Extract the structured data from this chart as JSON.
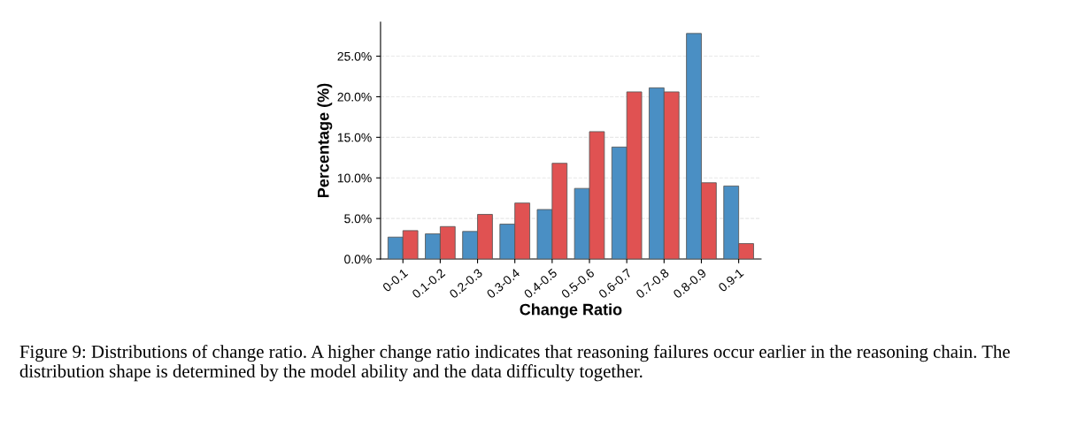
{
  "chart_data": {
    "type": "bar",
    "xlabel": "Change Ratio",
    "ylabel": "Percentage (%)",
    "categories": [
      "0-0.1",
      "0.1-0.2",
      "0.2-0.3",
      "0.3-0.4",
      "0.4-0.5",
      "0.5-0.6",
      "0.6-0.7",
      "0.7-0.8",
      "0.8-0.9",
      "0.9-1"
    ],
    "series": [
      {
        "color": "#4a8fc4",
        "values": [
          2.7,
          3.1,
          3.4,
          4.3,
          6.1,
          8.7,
          13.8,
          21.1,
          27.8,
          9.0
        ]
      },
      {
        "color": "#e05252",
        "values": [
          3.5,
          4.0,
          5.5,
          6.9,
          11.8,
          15.7,
          20.6,
          20.6,
          9.4,
          1.9
        ]
      }
    ],
    "ylim": [
      0,
      29.2
    ],
    "yticks": [
      {
        "value": 0,
        "label": "0.0%"
      },
      {
        "value": 5,
        "label": "5.0%"
      },
      {
        "value": 10,
        "label": "10.0%"
      },
      {
        "value": 15,
        "label": "15.0%"
      },
      {
        "value": 20,
        "label": "20.0%"
      },
      {
        "value": 25,
        "label": "25.0%"
      }
    ],
    "grid": "y",
    "annotations": [
      "Figure 9: Distributions of change ratio. A higher change ratio indicates that reasoning failures occur earlier in the reasoning chain. The distribution shape is determined by the model ability and the data difficulty together."
    ]
  }
}
